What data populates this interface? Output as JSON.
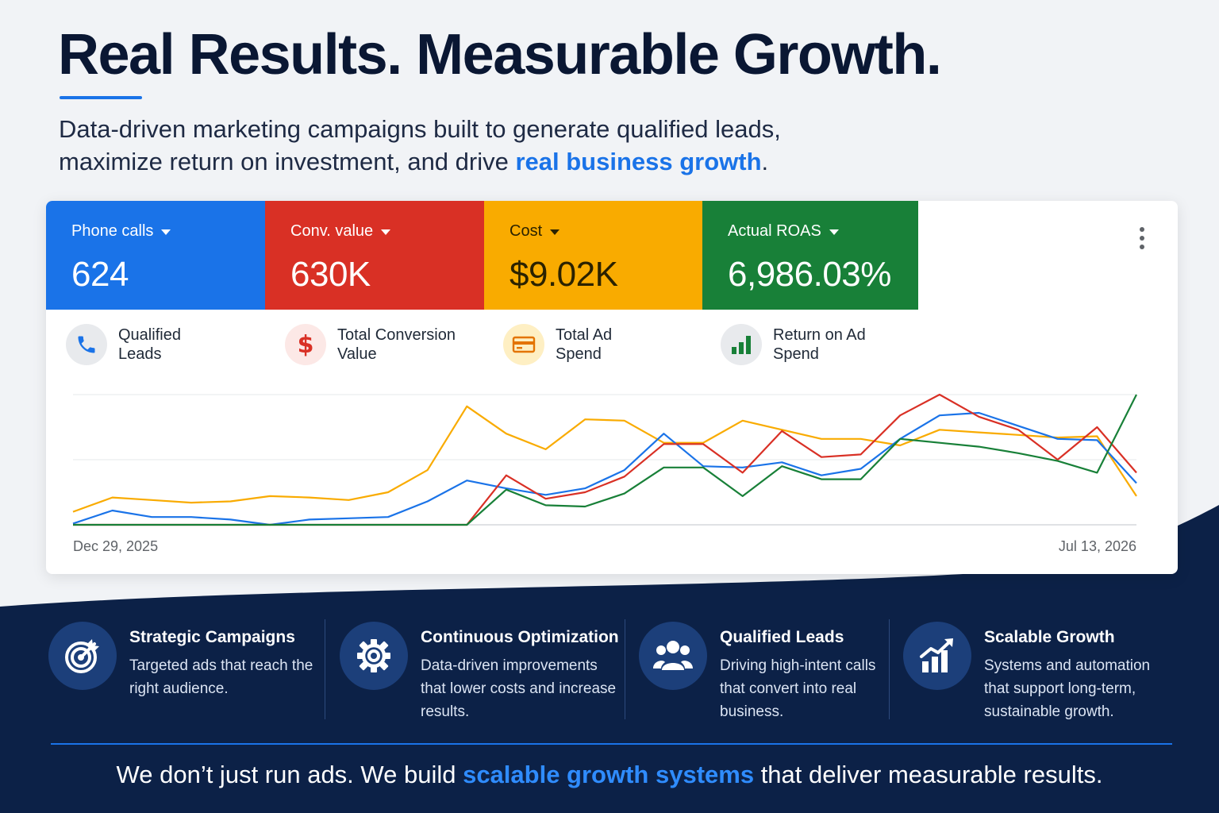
{
  "hero": {
    "headline": "Real Results. Measurable Growth.",
    "subtitle_line1": "Data-driven marketing campaigns built to generate qualified leads,",
    "subtitle_line2_pre": "maximize return on investment, and drive ",
    "subtitle_line2_highlight": "real business growth",
    "subtitle_line2_post": "."
  },
  "dashboard": {
    "tiles": [
      {
        "label": "Phone calls",
        "value": "624",
        "color": "#1a73e8"
      },
      {
        "label": "Conv. value",
        "value": "630K",
        "color": "#d93025"
      },
      {
        "label": "Cost",
        "value": "$9.02K",
        "color": "#f9ab00"
      },
      {
        "label": "Actual ROAS",
        "value": "6,986.03%",
        "color": "#188038"
      }
    ],
    "metrics": [
      {
        "label": "Qualified Leads",
        "icon": "phone-icon"
      },
      {
        "label": "Total Conversion Value",
        "icon": "dollar-icon"
      },
      {
        "label": "Total Ad Spend",
        "icon": "credit-card-icon"
      },
      {
        "label": "Return on Ad Spend",
        "icon": "bar-chart-icon"
      }
    ],
    "more_icon": "more-vert-icon"
  },
  "chart_data": {
    "type": "line",
    "x_start_label": "Dec 29, 2025",
    "x_end_label": "Jul 13, 2026",
    "grid": true,
    "ylim": [
      0,
      100
    ],
    "series": [
      {
        "color": "#f9ab00",
        "values": [
          10,
          21,
          19,
          17,
          18,
          22,
          21,
          19,
          25,
          42,
          91,
          70,
          58,
          81,
          80,
          63,
          63,
          80,
          73,
          66,
          66,
          61,
          73,
          71,
          69,
          67,
          68,
          22
        ]
      },
      {
        "color": "#1a73e8",
        "values": [
          1,
          11,
          6,
          6,
          4,
          0,
          4,
          5,
          6,
          18,
          34,
          28,
          23,
          28,
          42,
          70,
          45,
          44,
          48,
          38,
          43,
          66,
          84,
          86,
          76,
          66,
          65,
          32
        ]
      },
      {
        "color": "#d93025",
        "values": [
          0,
          0,
          0,
          0,
          0,
          0,
          0,
          0,
          0,
          0,
          0,
          38,
          20,
          25,
          37,
          62,
          62,
          40,
          72,
          52,
          54,
          84,
          100,
          83,
          73,
          50,
          75,
          40
        ]
      },
      {
        "color": "#188038",
        "values": [
          0,
          0,
          0,
          0,
          0,
          0,
          0,
          0,
          0,
          0,
          0,
          27,
          15,
          14,
          24,
          44,
          44,
          22,
          45,
          35,
          35,
          66,
          63,
          60,
          55,
          49,
          40,
          100
        ]
      }
    ]
  },
  "features": [
    {
      "title": "Strategic Campaigns",
      "desc": "Targeted ads that reach the right audience.",
      "icon": "target-icon"
    },
    {
      "title": "Continuous Optimization",
      "desc": "Data-driven improvements that lower costs and increase results.",
      "icon": "gear-icon"
    },
    {
      "title": "Qualified Leads",
      "desc": "Driving high-intent calls that convert into real business.",
      "icon": "users-icon"
    },
    {
      "title": "Scalable Growth",
      "desc": "Systems and automation that support long-term, sustainable growth.",
      "icon": "growth-chart-icon"
    }
  ],
  "tagline": {
    "pre": "We don’t just run ads. We build ",
    "highlight": "scalable growth systems",
    "post": " that deliver measurable results."
  },
  "colors": {
    "navy": "#0c2147",
    "accent": "#1a73e8"
  }
}
